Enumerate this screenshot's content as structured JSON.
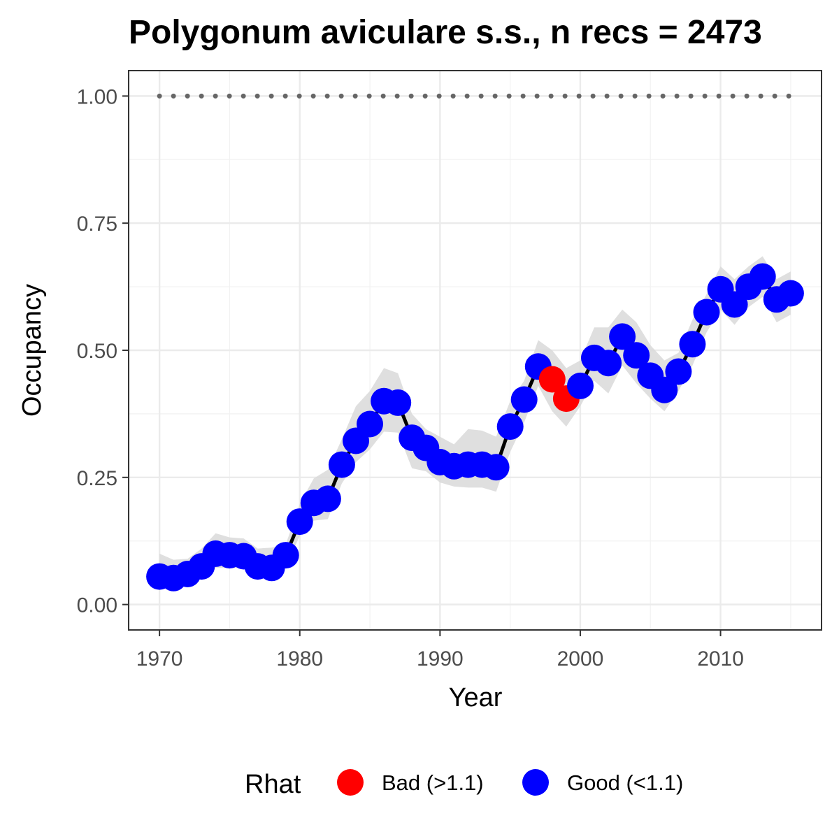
{
  "chart_data": {
    "type": "line",
    "title": "Polygonum aviculare s.s., n recs = 2473",
    "xlabel": "Year",
    "ylabel": "Occupancy",
    "xlim": [
      1967.8,
      2017.2
    ],
    "ylim": [
      -0.05,
      1.05
    ],
    "x_ticks": [
      1970,
      1980,
      1990,
      2000,
      2010
    ],
    "x_tick_labels": [
      "1970",
      "1980",
      "1990",
      "2000",
      "2010"
    ],
    "y_ticks": [
      0,
      0.25,
      0.5,
      0.75,
      1.0
    ],
    "y_tick_labels": [
      "0.00",
      "0.25",
      "0.50",
      "0.75",
      "1.00"
    ],
    "grid": true,
    "reference_line": {
      "y": 1.0,
      "style": "dotted",
      "color": "#666666"
    },
    "x": [
      1970,
      1971,
      1972,
      1973,
      1974,
      1975,
      1976,
      1977,
      1978,
      1979,
      1980,
      1981,
      1982,
      1983,
      1984,
      1985,
      1986,
      1987,
      1988,
      1989,
      1990,
      1991,
      1992,
      1993,
      1994,
      1995,
      1996,
      1997,
      1998,
      1999,
      2000,
      2001,
      2002,
      2003,
      2004,
      2005,
      2006,
      2007,
      2008,
      2009,
      2010,
      2011,
      2012,
      2013,
      2014,
      2015
    ],
    "occupancy": [
      0.055,
      0.052,
      0.06,
      0.075,
      0.1,
      0.097,
      0.095,
      0.075,
      0.072,
      0.097,
      0.163,
      0.2,
      0.208,
      0.275,
      0.322,
      0.355,
      0.4,
      0.397,
      0.328,
      0.308,
      0.28,
      0.272,
      0.275,
      0.275,
      0.27,
      0.35,
      0.403,
      0.468,
      0.443,
      0.405,
      0.43,
      0.485,
      0.475,
      0.527,
      0.49,
      0.45,
      0.422,
      0.458,
      0.512,
      0.575,
      0.62,
      0.59,
      0.625,
      0.645,
      0.6,
      0.612
    ],
    "lower": [
      0.035,
      0.035,
      0.042,
      0.055,
      0.072,
      0.072,
      0.072,
      0.055,
      0.052,
      0.075,
      0.135,
      0.165,
      0.168,
      0.238,
      0.28,
      0.305,
      0.34,
      0.338,
      0.268,
      0.262,
      0.24,
      0.232,
      0.23,
      0.23,
      0.222,
      0.3,
      0.358,
      0.43,
      0.38,
      0.35,
      0.39,
      0.44,
      0.415,
      0.47,
      0.435,
      0.405,
      0.38,
      0.42,
      0.47,
      0.535,
      0.58,
      0.55,
      0.585,
      0.605,
      0.555,
      0.57
    ],
    "upper": [
      0.1,
      0.088,
      0.09,
      0.11,
      0.14,
      0.132,
      0.13,
      0.11,
      0.112,
      0.118,
      0.198,
      0.248,
      0.265,
      0.325,
      0.39,
      0.42,
      0.465,
      0.455,
      0.375,
      0.345,
      0.33,
      0.315,
      0.345,
      0.342,
      0.33,
      0.4,
      0.44,
      0.52,
      0.5,
      0.465,
      0.48,
      0.545,
      0.545,
      0.58,
      0.555,
      0.51,
      0.48,
      0.495,
      0.56,
      0.61,
      0.665,
      0.64,
      0.665,
      0.685,
      0.64,
      0.655
    ],
    "rhat": [
      "Good",
      "Good",
      "Good",
      "Good",
      "Good",
      "Good",
      "Good",
      "Good",
      "Good",
      "Good",
      "Good",
      "Good",
      "Good",
      "Good",
      "Good",
      "Good",
      "Good",
      "Good",
      "Good",
      "Good",
      "Good",
      "Good",
      "Good",
      "Good",
      "Good",
      "Good",
      "Good",
      "Good",
      "Bad",
      "Bad",
      "Good",
      "Good",
      "Good",
      "Good",
      "Good",
      "Good",
      "Good",
      "Good",
      "Good",
      "Good",
      "Good",
      "Good",
      "Good",
      "Good",
      "Good",
      "Good"
    ],
    "legend": {
      "title": "Rhat",
      "position": "bottom",
      "entries": [
        {
          "key": "Bad",
          "label": "Bad (>1.1)",
          "color": "#ff0000"
        },
        {
          "key": "Good",
          "label": "Good (<1.1)",
          "color": "#0000ff"
        }
      ]
    },
    "colors": {
      "Bad": "#ff0000",
      "Good": "#0000ff",
      "ribbon": "#d9d9d9",
      "line": "#000000"
    }
  }
}
